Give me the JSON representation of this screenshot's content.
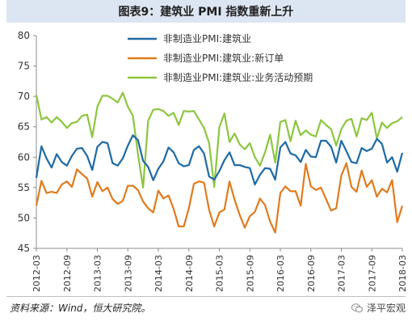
{
  "title": "图表9：建筑业 PMI 指数重新上升",
  "source": "资料来源：Wind，恒大研究院。",
  "watermark": "泽平宏观",
  "chart_data": {
    "type": "line",
    "ylim": [
      45,
      80
    ],
    "yticks": [
      45,
      50,
      55,
      60,
      65,
      70,
      75,
      80
    ],
    "xtick_labels": [
      "2012-03",
      "2012-09",
      "2013-03",
      "2013-09",
      "2014-03",
      "2014-09",
      "2015-03",
      "2015-09",
      "2016-03",
      "2016-09",
      "2017-03",
      "2017-09",
      "2018-03"
    ],
    "grid": false,
    "legend_position": "top-center",
    "x": [
      "2012-03",
      "2012-04",
      "2012-05",
      "2012-06",
      "2012-07",
      "2012-08",
      "2012-09",
      "2012-10",
      "2012-11",
      "2012-12",
      "2013-01",
      "2013-02",
      "2013-03",
      "2013-04",
      "2013-05",
      "2013-06",
      "2013-07",
      "2013-08",
      "2013-09",
      "2013-10",
      "2013-11",
      "2013-12",
      "2014-01",
      "2014-02",
      "2014-03",
      "2014-04",
      "2014-05",
      "2014-06",
      "2014-07",
      "2014-08",
      "2014-09",
      "2014-10",
      "2014-11",
      "2014-12",
      "2015-01",
      "2015-02",
      "2015-03",
      "2015-04",
      "2015-05",
      "2015-06",
      "2015-07",
      "2015-08",
      "2015-09",
      "2015-10",
      "2015-11",
      "2015-12",
      "2016-01",
      "2016-02",
      "2016-03",
      "2016-04",
      "2016-05",
      "2016-06",
      "2016-07",
      "2016-08",
      "2016-09",
      "2016-10",
      "2016-11",
      "2016-12",
      "2017-01",
      "2017-02",
      "2017-03",
      "2017-04",
      "2017-05",
      "2017-06",
      "2017-07",
      "2017-08",
      "2017-09",
      "2017-10",
      "2017-11",
      "2017-12",
      "2018-01",
      "2018-02",
      "2018-03"
    ],
    "series": [
      {
        "name": "非制造业PMI:建筑业",
        "color": "#1f6aa5",
        "values": [
          56.6,
          61.8,
          59.8,
          58.3,
          60.5,
          59.2,
          58.6,
          60.2,
          61.4,
          61.5,
          60.2,
          57.9,
          61.7,
          62.5,
          62.3,
          59.0,
          58.6,
          59.8,
          61.9,
          63.6,
          62.8,
          59.4,
          58.4,
          56.2,
          58.1,
          59.3,
          61.6,
          60.8,
          59.0,
          58.5,
          58.7,
          61.2,
          61.8,
          60.6,
          56.8,
          56.3,
          57.7,
          59.5,
          60.8,
          58.7,
          58.7,
          58.4,
          58.2,
          55.5,
          57.1,
          58.2,
          58.1,
          56.3,
          61.6,
          62.5,
          60.6,
          60.3,
          59.2,
          61.2,
          60.1,
          60.0,
          62.7,
          62.7,
          61.7,
          59.1,
          62.7,
          61.0,
          59.2,
          59.0,
          61.5,
          61.0,
          61.4,
          63.0,
          62.2,
          59.1,
          60.0,
          57.6,
          60.7
        ]
      },
      {
        "name": "非制造业PMI:建筑业:新订单",
        "color": "#e07b1e",
        "values": [
          52.0,
          56.1,
          54.1,
          54.3,
          54.1,
          55.5,
          56.0,
          55.1,
          58.0,
          57.2,
          56.5,
          53.5,
          55.9,
          54.4,
          55.0,
          53.1,
          52.3,
          52.8,
          55.3,
          55.3,
          54.6,
          52.7,
          51.6,
          50.9,
          54.5,
          53.2,
          53.7,
          51.5,
          48.6,
          48.6,
          51.6,
          55.6,
          56.0,
          55.8,
          51.3,
          48.6,
          50.9,
          51.4,
          56.0,
          53.0,
          50.5,
          48.4,
          50.3,
          51.0,
          53.2,
          52.1,
          49.4,
          47.6,
          54.1,
          55.2,
          54.4,
          54.4,
          52.0,
          58.9,
          55.2,
          54.6,
          55.0,
          53.1,
          51.2,
          51.6,
          57.0,
          59.0,
          55.1,
          54.3,
          57.8,
          55.1,
          56.2,
          53.5,
          54.8,
          54.2,
          56.2,
          49.3,
          52.0
        ]
      },
      {
        "name": "非制造业PMI:建筑业:业务活动预期",
        "color": "#8cc63f",
        "values": [
          70.2,
          66.2,
          66.6,
          65.7,
          66.6,
          65.8,
          64.8,
          65.6,
          65.8,
          66.8,
          67.0,
          63.3,
          68.3,
          70.1,
          70.1,
          69.6,
          69.0,
          70.6,
          68.3,
          66.8,
          60.5,
          55.0,
          66.0,
          67.8,
          67.9,
          67.6,
          66.8,
          67.3,
          65.3,
          67.6,
          67.5,
          67.6,
          66.2,
          64.8,
          62.3,
          55.1,
          64.9,
          67.2,
          62.5,
          63.9,
          62.1,
          61.3,
          62.3,
          60.0,
          58.6,
          60.8,
          63.7,
          59.1,
          65.8,
          66.1,
          62.6,
          66.0,
          63.6,
          64.4,
          63.7,
          63.4,
          66.1,
          65.3,
          64.6,
          61.9,
          64.6,
          66.0,
          66.3,
          63.4,
          66.4,
          66.1,
          67.3,
          63.1,
          65.7,
          64.8,
          65.6,
          65.9,
          66.6
        ]
      }
    ]
  }
}
